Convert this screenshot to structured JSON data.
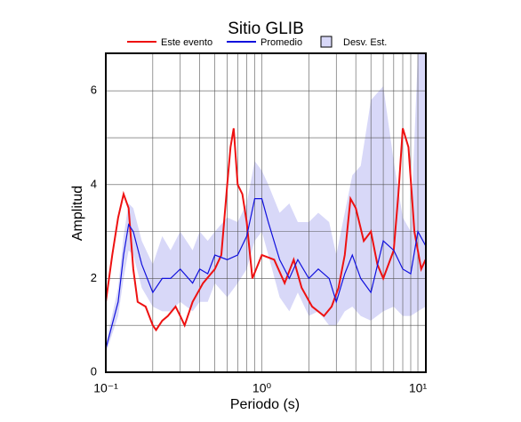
{
  "chart_data": {
    "type": "line",
    "title": "Sitio GLIB",
    "x_label": "Periodo (s)",
    "y_label": "Amplitud",
    "xscale": "log",
    "xlim": [
      0.1,
      11.25
    ],
    "ylim": [
      0,
      6.8
    ],
    "xticks": [
      {
        "value": 0.1,
        "label": "10⁻¹"
      },
      {
        "value": 1,
        "label": "10⁰"
      },
      {
        "value": 10,
        "label": "10¹"
      }
    ],
    "xminor": [
      0.2,
      0.3,
      0.4,
      0.5,
      0.6,
      0.7,
      0.8,
      0.9,
      2,
      3,
      4,
      5,
      6,
      7,
      8,
      9
    ],
    "yticks": [
      0,
      2,
      4,
      6
    ],
    "yminor": [
      1,
      3,
      5
    ],
    "grid": true,
    "series": [
      {
        "name": "Este evento",
        "color": "#ee1111",
        "x": [
          0.1,
          0.11,
          0.12,
          0.13,
          0.14,
          0.15,
          0.16,
          0.18,
          0.2,
          0.21,
          0.23,
          0.25,
          0.28,
          0.3,
          0.32,
          0.36,
          0.42,
          0.5,
          0.55,
          0.6,
          0.63,
          0.66,
          0.7,
          0.75,
          0.8,
          0.87,
          1.0,
          1.2,
          1.4,
          1.6,
          1.8,
          2.1,
          2.5,
          2.8,
          3.1,
          3.4,
          3.7,
          4.0,
          4.5,
          5.0,
          5.5,
          6.0,
          7.0,
          7.5,
          8.0,
          8.7,
          9.5,
          10.5,
          11.2
        ],
        "values": [
          1.5,
          2.5,
          3.3,
          3.8,
          3.5,
          2.2,
          1.5,
          1.4,
          1.0,
          0.9,
          1.1,
          1.2,
          1.4,
          1.2,
          1.0,
          1.5,
          1.9,
          2.2,
          2.5,
          4.0,
          4.8,
          5.2,
          4.0,
          3.8,
          3.2,
          2.0,
          2.5,
          2.4,
          1.9,
          2.4,
          1.8,
          1.4,
          1.2,
          1.4,
          1.8,
          2.5,
          3.7,
          3.5,
          2.8,
          3.0,
          2.3,
          2.0,
          2.6,
          3.8,
          5.2,
          4.8,
          3.0,
          2.2,
          2.4
        ]
      },
      {
        "name": "Promedio",
        "color": "#1111dd",
        "x": [
          0.1,
          0.12,
          0.13,
          0.14,
          0.15,
          0.17,
          0.2,
          0.23,
          0.26,
          0.3,
          0.36,
          0.4,
          0.45,
          0.5,
          0.6,
          0.7,
          0.8,
          0.9,
          1.0,
          1.1,
          1.3,
          1.5,
          1.7,
          2.0,
          2.3,
          2.7,
          3.0,
          3.4,
          3.8,
          4.3,
          5,
          6,
          7,
          8,
          9,
          10,
          11.2
        ],
        "values": [
          0.5,
          1.5,
          2.5,
          3.15,
          3.0,
          2.3,
          1.7,
          2.0,
          2.0,
          2.2,
          1.9,
          2.2,
          2.1,
          2.5,
          2.4,
          2.5,
          2.9,
          3.7,
          3.7,
          3.2,
          2.4,
          2.0,
          2.4,
          2.0,
          2.2,
          2.0,
          1.5,
          2.1,
          2.5,
          2.0,
          1.7,
          2.8,
          2.6,
          2.2,
          2.1,
          3.0,
          2.7
        ]
      },
      {
        "name": "Desv. Est.",
        "color": "#d8d8f8",
        "band": true,
        "x": [
          0.1,
          0.12,
          0.13,
          0.14,
          0.15,
          0.17,
          0.2,
          0.23,
          0.26,
          0.3,
          0.36,
          0.4,
          0.45,
          0.5,
          0.6,
          0.7,
          0.8,
          0.9,
          1.0,
          1.1,
          1.3,
          1.5,
          1.7,
          2.0,
          2.3,
          2.7,
          3.0,
          3.4,
          3.8,
          4.3,
          5,
          6,
          7,
          8,
          9,
          10,
          11.2
        ],
        "upper": [
          0.6,
          1.8,
          2.9,
          3.6,
          3.5,
          2.8,
          2.3,
          2.9,
          2.6,
          3.0,
          2.6,
          3.0,
          2.8,
          3.0,
          3.3,
          3.2,
          3.6,
          4.5,
          4.3,
          4.0,
          3.4,
          3.6,
          3.2,
          3.2,
          3.4,
          3.2,
          2.5,
          3.4,
          4.2,
          4.4,
          5.8,
          6.1,
          4.5,
          3.3,
          3.0,
          6.8,
          6.8
        ],
        "lower": [
          0.4,
          1.2,
          2.0,
          2.6,
          2.5,
          1.8,
          1.4,
          1.3,
          1.3,
          1.5,
          1.3,
          1.5,
          1.5,
          1.9,
          1.6,
          1.9,
          2.2,
          2.8,
          3.0,
          2.5,
          1.6,
          1.3,
          1.7,
          1.2,
          1.3,
          1.0,
          1.0,
          1.3,
          1.4,
          1.2,
          1.1,
          1.3,
          1.4,
          1.2,
          1.2,
          1.3,
          1.4
        ]
      }
    ]
  }
}
